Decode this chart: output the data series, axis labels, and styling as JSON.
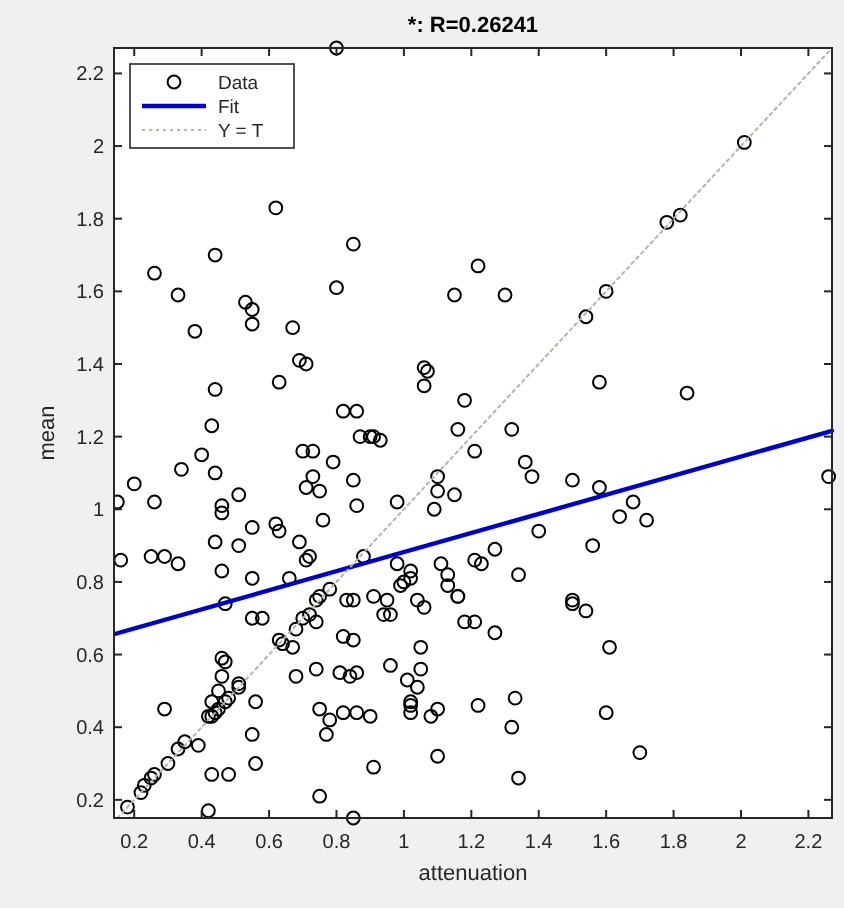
{
  "chart_data": {
    "type": "scatter",
    "title": "*: R=0.26241",
    "xlabel": "attenuation",
    "ylabel": "mean",
    "xlim": [
      0.14,
      2.27
    ],
    "ylim": [
      0.15,
      2.27
    ],
    "xticks": [
      0.2,
      0.4,
      0.6,
      0.8,
      1,
      1.2,
      1.4,
      1.6,
      1.8,
      2,
      2.2
    ],
    "yticks": [
      0.2,
      0.4,
      0.6,
      0.8,
      1,
      1.2,
      1.4,
      1.6,
      1.8,
      2,
      2.2
    ],
    "grid": false,
    "legend": "top left",
    "series": [
      {
        "name": "Data",
        "marker": "circle",
        "color": "#000000",
        "x": [
          0.8,
          0.62,
          0.44,
          0.85,
          0.26,
          0.33,
          0.53,
          0.55,
          0.55,
          0.8,
          1.15,
          0.38,
          0.67,
          0.69,
          0.71,
          0.44,
          0.63,
          1.06,
          1.07,
          1.06,
          0.82,
          0.86,
          1.22,
          1.3,
          2.01,
          1.78,
          1.82,
          1.6,
          1.54,
          1.58,
          1.84,
          1.18,
          0.43,
          0.4,
          0.34,
          0.44,
          0.2,
          0.15,
          0.26,
          0.46,
          0.46,
          0.51,
          0.7,
          0.73,
          0.79,
          0.73,
          0.71,
          0.75,
          0.87,
          0.9,
          0.91,
          0.93,
          0.85,
          0.86,
          0.76,
          0.98,
          1.1,
          1.1,
          1.09,
          1.15,
          1.16,
          0.44,
          0.51,
          0.55,
          0.62,
          0.63,
          0.69,
          0.71,
          0.72,
          0.16,
          0.25,
          0.29,
          0.33,
          0.46,
          0.55,
          0.66,
          0.47,
          0.55,
          0.58,
          0.63,
          0.64,
          0.67,
          0.68,
          0.7,
          0.72,
          0.74,
          0.75,
          0.74,
          0.78,
          0.88,
          0.83,
          0.85,
          0.82,
          0.85,
          0.91,
          0.95,
          0.94,
          0.96,
          0.98,
          0.99,
          1.02,
          1.02,
          1.0,
          1.04,
          1.06,
          1.11,
          1.13,
          1.13,
          1.16,
          0.46,
          0.47,
          0.46,
          0.45,
          0.43,
          0.47,
          0.48,
          0.51,
          0.51,
          0.42,
          0.44,
          0.45,
          0.43,
          0.56,
          0.68,
          0.74,
          0.81,
          0.84,
          0.86,
          0.96,
          1.05,
          1.01,
          1.04,
          1.05,
          1.02,
          1.02,
          1.02,
          0.75,
          0.82,
          0.86,
          0.9,
          0.78,
          0.77,
          1.08,
          1.1,
          1.1,
          0.29,
          0.55,
          0.39,
          0.35,
          0.33,
          0.3,
          0.26,
          0.25,
          0.23,
          0.22,
          0.18,
          0.43,
          0.48,
          0.56,
          0.91,
          0.75,
          0.42,
          0.85,
          1.32,
          1.21,
          1.36,
          1.38,
          1.5,
          1.58,
          1.68,
          1.64,
          1.72,
          1.4,
          2.26,
          1.56,
          1.27,
          1.21,
          1.23,
          1.34,
          1.16,
          1.18,
          1.21,
          1.27,
          1.5,
          1.5,
          1.54,
          1.61,
          1.33,
          1.22,
          1.32,
          1.6,
          1.7,
          1.34
        ],
        "values": [
          2.27,
          1.83,
          1.7,
          1.73,
          1.65,
          1.59,
          1.57,
          1.55,
          1.51,
          1.61,
          1.59,
          1.49,
          1.5,
          1.41,
          1.4,
          1.33,
          1.35,
          1.39,
          1.38,
          1.34,
          1.27,
          1.27,
          1.67,
          1.59,
          2.01,
          1.79,
          1.81,
          1.6,
          1.53,
          1.35,
          1.32,
          1.3,
          1.23,
          1.15,
          1.11,
          1.1,
          1.07,
          1.02,
          1.02,
          1.01,
          0.99,
          1.04,
          1.16,
          1.16,
          1.13,
          1.09,
          1.06,
          1.05,
          1.2,
          1.2,
          1.2,
          1.19,
          1.08,
          1.01,
          0.97,
          1.02,
          1.09,
          1.05,
          1.0,
          1.04,
          1.22,
          0.91,
          0.9,
          0.95,
          0.96,
          0.94,
          0.91,
          0.86,
          0.87,
          0.86,
          0.87,
          0.87,
          0.85,
          0.83,
          0.81,
          0.81,
          0.74,
          0.7,
          0.7,
          0.64,
          0.63,
          0.62,
          0.67,
          0.7,
          0.71,
          0.75,
          0.76,
          0.69,
          0.78,
          0.87,
          0.75,
          0.75,
          0.65,
          0.64,
          0.76,
          0.75,
          0.71,
          0.71,
          0.85,
          0.79,
          0.83,
          0.81,
          0.8,
          0.75,
          0.73,
          0.85,
          0.82,
          0.79,
          0.76,
          0.59,
          0.58,
          0.54,
          0.5,
          0.47,
          0.47,
          0.48,
          0.51,
          0.52,
          0.43,
          0.44,
          0.45,
          0.43,
          0.47,
          0.54,
          0.56,
          0.55,
          0.54,
          0.55,
          0.57,
          0.62,
          0.53,
          0.51,
          0.56,
          0.47,
          0.46,
          0.44,
          0.45,
          0.44,
          0.44,
          0.43,
          0.42,
          0.38,
          0.43,
          0.45,
          0.32,
          0.45,
          0.38,
          0.35,
          0.36,
          0.34,
          0.3,
          0.27,
          0.26,
          0.24,
          0.22,
          0.18,
          0.27,
          0.27,
          0.3,
          0.29,
          0.21,
          0.17,
          0.15,
          1.22,
          1.16,
          1.13,
          1.09,
          1.08,
          1.06,
          1.02,
          0.98,
          0.97,
          0.94,
          1.09,
          0.9,
          0.89,
          0.86,
          0.85,
          0.82,
          0.76,
          0.69,
          0.69,
          0.66,
          0.75,
          0.74,
          0.72,
          0.62,
          0.48,
          0.46,
          0.4,
          0.44,
          0.33,
          0.26
        ]
      },
      {
        "name": "Fit",
        "type": "line",
        "color": "#0000cc",
        "x": [
          0.14,
          2.27
        ],
        "values": [
          0.656,
          1.216
        ],
        "line_style": "solid",
        "marker": "none"
      },
      {
        "name": "Y = T",
        "type": "line",
        "color": "#b8b4a4",
        "x": [
          0.15,
          2.27
        ],
        "values": [
          0.15,
          2.27
        ],
        "line_style": "dotted",
        "marker": "none"
      }
    ]
  }
}
